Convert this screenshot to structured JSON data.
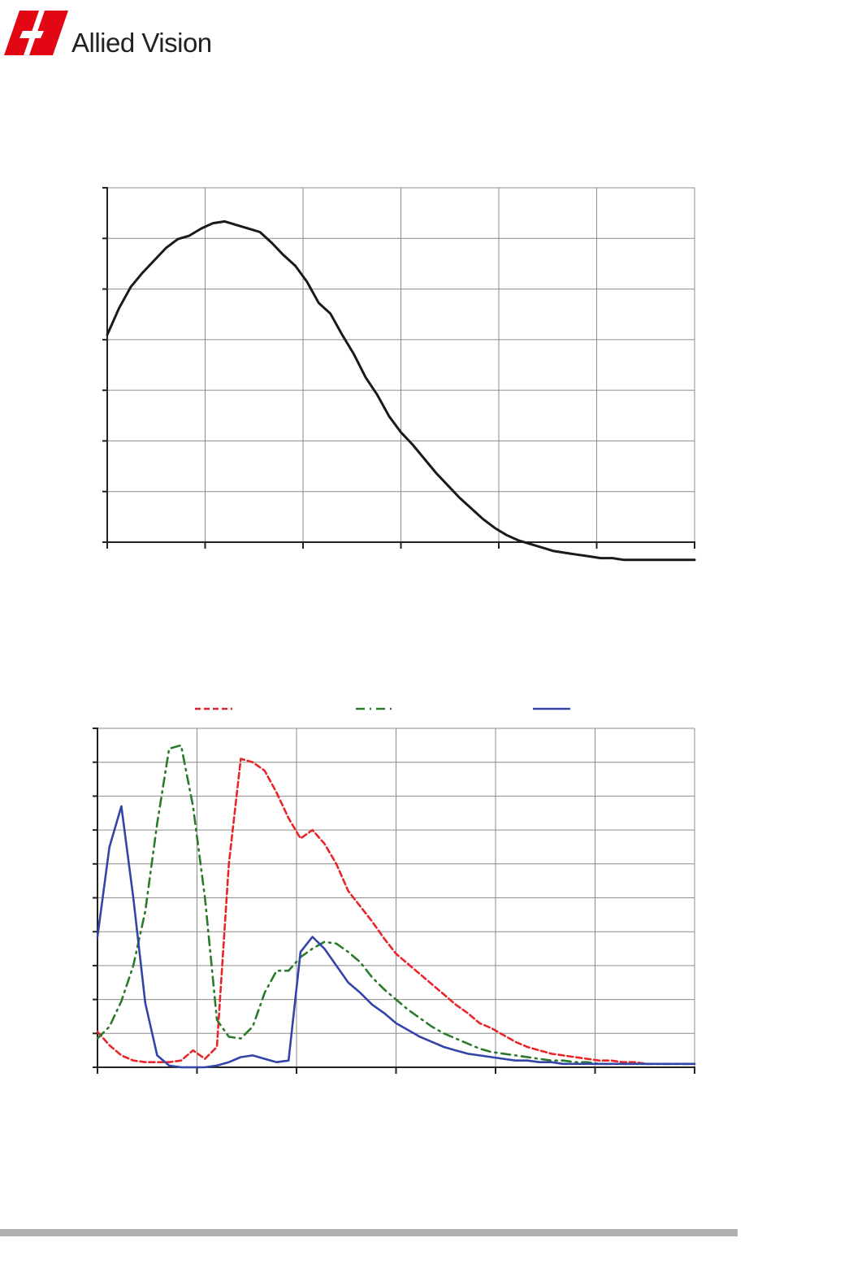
{
  "header": {
    "brand": "Allied Vision",
    "logo_icon": "allied-vision-logo-icon",
    "brand_color": "#e30613"
  },
  "chart_data": [
    {
      "type": "line",
      "x_gridlines": 6,
      "y_gridlines": 7,
      "grid": true,
      "series": [
        {
          "color": "#1a1a1a",
          "style": "solid",
          "x": [
            0,
            2,
            4,
            6,
            8,
            10,
            12,
            14,
            16,
            18,
            20,
            22,
            24,
            26,
            28,
            30,
            32,
            34,
            36,
            38,
            40,
            42,
            44,
            46,
            48,
            50,
            52,
            54,
            56,
            58,
            60,
            62,
            64,
            66,
            68,
            70,
            72,
            74,
            76,
            78,
            80,
            82,
            84,
            86,
            88,
            90,
            92,
            94,
            96,
            98,
            100
          ],
          "y": [
            58.5,
            66,
            72,
            76,
            79.5,
            83,
            85.5,
            86.5,
            88.5,
            90,
            90.5,
            89.5,
            88.5,
            87.5,
            84.5,
            81,
            78,
            73.5,
            67.5,
            64.5,
            58.5,
            53,
            46.5,
            41.5,
            35.5,
            31,
            27.5,
            23.5,
            19.5,
            16,
            12.5,
            9.5,
            6.5,
            4,
            2,
            0.5,
            -0.5,
            -1.5,
            -2.5,
            -3,
            -3.5,
            -4,
            -4.5,
            -4.5,
            -5,
            -5,
            -5,
            -5,
            -5,
            -5,
            -5
          ]
        }
      ]
    },
    {
      "type": "line",
      "x_gridlines": 6,
      "y_gridlines": 10,
      "grid": true,
      "legend_placement": "top",
      "series": [
        {
          "color": "#e8262a",
          "style": "dashed",
          "x": [
            0,
            2,
            4,
            6,
            8,
            10,
            12,
            14,
            16,
            18,
            20,
            22,
            24,
            26,
            28,
            30,
            32,
            34,
            36,
            38,
            40,
            42,
            44,
            46,
            48,
            50,
            52,
            54,
            56,
            58,
            60,
            62,
            64,
            66,
            68,
            70,
            72,
            74,
            76,
            78,
            80,
            82,
            84,
            86,
            88,
            90,
            92,
            94,
            96,
            98,
            100
          ],
          "y": [
            10.5,
            6.5,
            3.5,
            2,
            1.5,
            1.5,
            1.5,
            2,
            5,
            2.5,
            6,
            60,
            91,
            90,
            87.5,
            81,
            73.5,
            67.5,
            70,
            66,
            60,
            52,
            47.5,
            43,
            38,
            33.5,
            30.5,
            27.5,
            24.5,
            21.5,
            18.5,
            16,
            13,
            11.5,
            9.5,
            7.5,
            6,
            5,
            4,
            3.5,
            3,
            2.5,
            2,
            2,
            1.5,
            1.5,
            1,
            1,
            1,
            1,
            1
          ]
        },
        {
          "color": "#2b7a2b",
          "style": "dash-dot",
          "x": [
            0,
            2,
            4,
            6,
            8,
            10,
            12,
            14,
            16,
            18,
            20,
            22,
            24,
            26,
            28,
            30,
            32,
            34,
            36,
            38,
            40,
            42,
            44,
            46,
            48,
            50,
            52,
            54,
            56,
            58,
            60,
            62,
            64,
            66,
            68,
            70,
            72,
            74,
            76,
            78,
            80,
            82,
            84,
            86,
            88,
            90,
            92,
            94,
            96,
            98,
            100
          ],
          "y": [
            8.5,
            12,
            19.5,
            30,
            46,
            72,
            94,
            95,
            77,
            50,
            14,
            9,
            8.5,
            12,
            22,
            28.5,
            28.5,
            32.5,
            35,
            37,
            36.5,
            34,
            31,
            26.5,
            23,
            20,
            17,
            14.5,
            12,
            10,
            8.5,
            7,
            5.5,
            4.5,
            4,
            3.5,
            3,
            2.5,
            2,
            2,
            1.5,
            1.5,
            1,
            1,
            1,
            1,
            1,
            1,
            1,
            1,
            1
          ]
        },
        {
          "color": "#3344a8",
          "style": "solid",
          "x": [
            0,
            2,
            4,
            6,
            8,
            10,
            12,
            14,
            16,
            18,
            20,
            22,
            24,
            26,
            28,
            30,
            32,
            34,
            36,
            38,
            40,
            42,
            44,
            46,
            48,
            50,
            52,
            54,
            56,
            58,
            60,
            62,
            64,
            66,
            68,
            70,
            72,
            74,
            76,
            78,
            80,
            82,
            84,
            86,
            88,
            90,
            92,
            94,
            96,
            98,
            100
          ],
          "y": [
            38.5,
            65,
            77,
            50,
            19,
            3.5,
            0.5,
            0,
            0,
            0,
            0.5,
            1.5,
            3,
            3.5,
            2.5,
            1.5,
            2,
            34,
            38.5,
            35,
            30,
            25,
            22,
            18.5,
            16,
            13,
            11,
            9,
            7.5,
            6,
            5,
            4,
            3.5,
            3,
            2.5,
            2,
            2,
            1.5,
            1.5,
            1,
            1,
            1,
            1,
            1,
            1,
            1,
            1,
            1,
            1,
            1,
            1
          ]
        }
      ]
    }
  ]
}
